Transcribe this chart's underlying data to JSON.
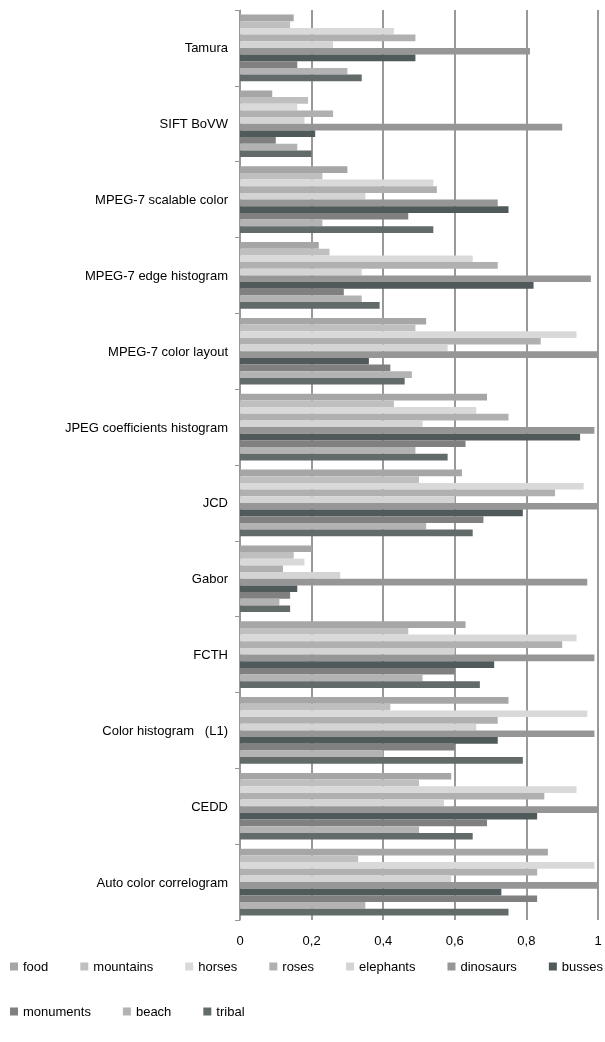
{
  "chart_data": {
    "type": "bar",
    "orientation": "horizontal",
    "categories": [
      "Tamura",
      "SIFT BoVW",
      "MPEG-7 scalable color",
      "MPEG-7 edge histogram",
      "MPEG-7 color layout",
      "JPEG coefficients histogram",
      "JCD",
      "Gabor",
      "FCTH",
      "Color histogram   (L1)",
      "CEDD",
      "Auto color correlogram"
    ],
    "series": [
      {
        "name": "food",
        "color": "#a6a6a6",
        "values": [
          0.15,
          0.09,
          0.3,
          0.22,
          0.52,
          0.69,
          0.62,
          0.2,
          0.63,
          0.75,
          0.59,
          0.86
        ]
      },
      {
        "name": "mountains",
        "color": "#bfbfbf",
        "values": [
          0.14,
          0.19,
          0.23,
          0.25,
          0.49,
          0.43,
          0.5,
          0.15,
          0.47,
          0.42,
          0.5,
          0.33
        ]
      },
      {
        "name": "horses",
        "color": "#d9d9d9",
        "values": [
          0.43,
          0.16,
          0.54,
          0.65,
          0.94,
          0.66,
          0.96,
          0.18,
          0.94,
          0.97,
          0.94,
          0.99
        ]
      },
      {
        "name": "roses",
        "color": "#b0b0b0",
        "values": [
          0.49,
          0.26,
          0.55,
          0.72,
          0.84,
          0.75,
          0.88,
          0.12,
          0.9,
          0.72,
          0.85,
          0.83
        ]
      },
      {
        "name": "elephants",
        "color": "#d4d4d4",
        "values": [
          0.26,
          0.18,
          0.35,
          0.34,
          0.58,
          0.51,
          0.6,
          0.28,
          0.6,
          0.66,
          0.57,
          0.59
        ]
      },
      {
        "name": "dinosaurs",
        "color": "#969696",
        "values": [
          0.81,
          0.9,
          0.72,
          0.98,
          1.0,
          0.99,
          1.0,
          0.97,
          0.99,
          0.99,
          1.0,
          1.0
        ]
      },
      {
        "name": "busses",
        "color": "#515a5a",
        "values": [
          0.49,
          0.21,
          0.75,
          0.82,
          0.36,
          0.95,
          0.79,
          0.16,
          0.71,
          0.72,
          0.83,
          0.73
        ]
      },
      {
        "name": "monuments",
        "color": "#808080",
        "values": [
          0.16,
          0.1,
          0.47,
          0.29,
          0.42,
          0.63,
          0.68,
          0.14,
          0.6,
          0.6,
          0.69,
          0.83
        ]
      },
      {
        "name": "beach",
        "color": "#b3b3b3",
        "values": [
          0.3,
          0.16,
          0.23,
          0.34,
          0.48,
          0.49,
          0.52,
          0.11,
          0.51,
          0.4,
          0.5,
          0.35
        ]
      },
      {
        "name": "tribal",
        "color": "#636a6a",
        "values": [
          0.34,
          0.2,
          0.54,
          0.39,
          0.46,
          0.58,
          0.65,
          0.14,
          0.67,
          0.79,
          0.65,
          0.75
        ]
      }
    ],
    "xlim": [
      0,
      1
    ],
    "xticks": [
      0,
      {
        "value": 0.2,
        "label": "0,2"
      },
      {
        "value": 0.4,
        "label": "0,4"
      },
      {
        "value": 0.6,
        "label": "0,6"
      },
      {
        "value": 0.8,
        "label": "0,8"
      },
      1
    ],
    "grid": "x",
    "legend": "bottom"
  }
}
